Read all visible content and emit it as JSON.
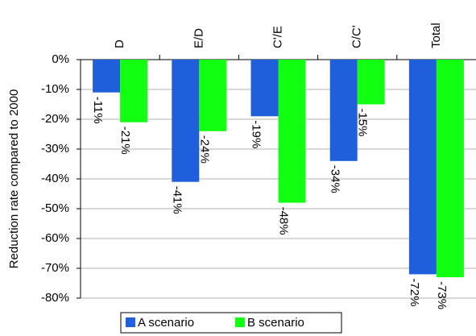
{
  "chart_data": {
    "type": "bar",
    "y_label": "Reduction rate compared to 2000",
    "categories": [
      "D",
      "E/D",
      "C'/E",
      "C/C'",
      "Total"
    ],
    "series": [
      {
        "name": "A scenario",
        "color": "#1f5fdc",
        "values": [
          -11,
          -41,
          -19,
          -34,
          -72
        ],
        "value_labels": [
          "-11%",
          "-41%",
          "-19%",
          "-34%",
          "-72%"
        ]
      },
      {
        "name": "B scenario",
        "color": "#11ff11",
        "values": [
          -21,
          -24,
          -48,
          -15,
          -73
        ],
        "value_labels": [
          "-21%",
          "-24%",
          "-48%",
          "-15%",
          "-73%"
        ]
      }
    ],
    "ylim": [
      -80,
      0
    ],
    "yticks": [
      {
        "value": 0,
        "label": "0%"
      },
      {
        "value": -10,
        "label": "-10%"
      },
      {
        "value": -20,
        "label": "-20%"
      },
      {
        "value": -30,
        "label": "-30%"
      },
      {
        "value": -40,
        "label": "-40%"
      },
      {
        "value": -50,
        "label": "-50%"
      },
      {
        "value": -60,
        "label": "-60%"
      },
      {
        "value": -70,
        "label": "-70%"
      },
      {
        "value": -80,
        "label": "-80%"
      }
    ],
    "grid": true
  }
}
